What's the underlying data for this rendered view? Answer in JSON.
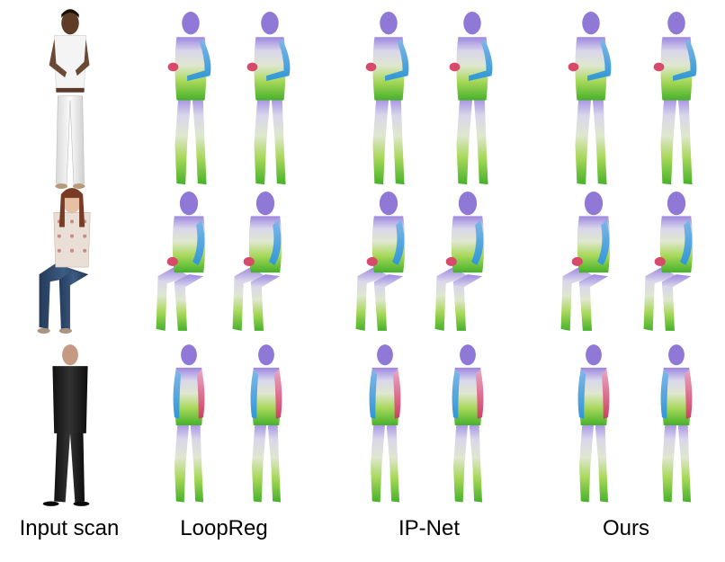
{
  "figure": {
    "columns": [
      {
        "id": "input",
        "caption": "Input scan",
        "render": "photo"
      },
      {
        "id": "loopreg",
        "caption": "LoopReg",
        "render": "mesh-pair"
      },
      {
        "id": "ipnet",
        "caption": "IP-Net",
        "render": "mesh-pair"
      },
      {
        "id": "ours",
        "caption": "Ours",
        "render": "mesh-pair"
      }
    ],
    "rows": [
      {
        "id": "row-1",
        "pose": "standing-front",
        "subject": "woman in white top and white jeans"
      },
      {
        "id": "row-2",
        "pose": "seated",
        "subject": "woman in floral blouse and jeans, seated"
      },
      {
        "id": "row-3",
        "pose": "standing-back",
        "subject": "man in dark suit seen from behind"
      }
    ],
    "mesh_colors": {
      "head": "#8f78d6",
      "torso": "#cfd8dc",
      "left_arm": "#4aa7e0",
      "right_hand": "#d84a6a",
      "legs": "#8ccf2e",
      "feet": "#3fae28"
    }
  }
}
